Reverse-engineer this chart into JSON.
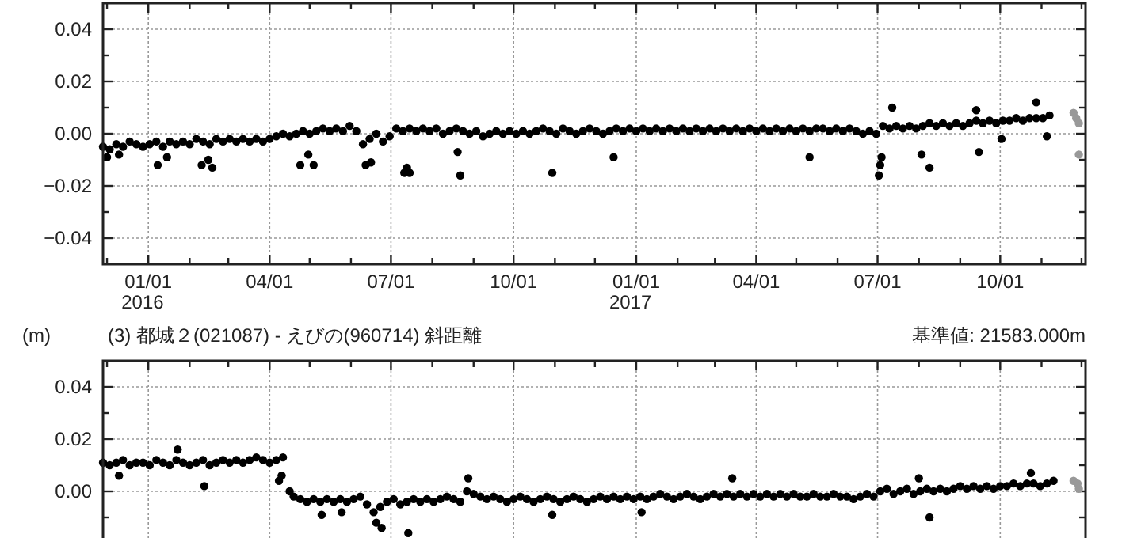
{
  "chart_data": [
    {
      "type": "scatter",
      "xlim": [
        "2015-11-28",
        "2017-12-04"
      ],
      "ylim": [
        -0.05,
        0.05
      ],
      "grid": true,
      "marker": "circle",
      "xticks": [
        {
          "value": "2015-12-01",
          "label": null
        },
        {
          "value": "2016-01-01",
          "label": "01/01\n2016"
        },
        {
          "value": "2016-02-01",
          "label": null
        },
        {
          "value": "2016-03-01",
          "label": null
        },
        {
          "value": "2016-04-01",
          "label": "04/01"
        },
        {
          "value": "2016-05-01",
          "label": null
        },
        {
          "value": "2016-06-01",
          "label": null
        },
        {
          "value": "2016-07-01",
          "label": "07/01"
        },
        {
          "value": "2016-08-01",
          "label": null
        },
        {
          "value": "2016-09-01",
          "label": null
        },
        {
          "value": "2016-10-01",
          "label": "10/01"
        },
        {
          "value": "2016-11-01",
          "label": null
        },
        {
          "value": "2016-12-01",
          "label": null
        },
        {
          "value": "2017-01-01",
          "label": "01/01\n2017"
        },
        {
          "value": "2017-02-01",
          "label": null
        },
        {
          "value": "2017-03-01",
          "label": null
        },
        {
          "value": "2017-04-01",
          "label": "04/01"
        },
        {
          "value": "2017-05-01",
          "label": null
        },
        {
          "value": "2017-06-01",
          "label": null
        },
        {
          "value": "2017-07-01",
          "label": "07/01"
        },
        {
          "value": "2017-08-01",
          "label": null
        },
        {
          "value": "2017-09-01",
          "label": null
        },
        {
          "value": "2017-10-01",
          "label": "10/01"
        },
        {
          "value": "2017-11-01",
          "label": null
        },
        {
          "value": "2017-12-01",
          "label": null
        }
      ],
      "yticks": [
        {
          "value": 0.04,
          "label": "0.04"
        },
        {
          "value": 0.03,
          "label": null
        },
        {
          "value": 0.02,
          "label": "0.02"
        },
        {
          "value": 0.01,
          "label": null
        },
        {
          "value": 0,
          "label": "0.00"
        },
        {
          "value": -0.01,
          "label": null
        },
        {
          "value": -0.02,
          "label": "−0.02"
        },
        {
          "value": -0.03,
          "label": null
        },
        {
          "value": -0.04,
          "label": "−0.04"
        }
      ],
      "series": [
        {
          "color": "#000000",
          "x": [
            "2015-11-28",
            "2015-12-03",
            "2015-12-08",
            "2015-12-13",
            "2015-12-18",
            "2015-12-23",
            "2015-12-28",
            "2016-01-02",
            "2016-01-07",
            "2016-01-12",
            "2016-01-17",
            "2016-01-22",
            "2016-01-27",
            "2016-02-01",
            "2016-02-06",
            "2016-02-11",
            "2016-02-16",
            "2016-02-21",
            "2016-02-26",
            "2016-03-02",
            "2016-03-07",
            "2016-03-12",
            "2016-03-17",
            "2016-03-22",
            "2016-03-27",
            "2016-04-01",
            "2016-04-06",
            "2016-04-11",
            "2016-04-16",
            "2016-04-21",
            "2016-04-26",
            "2016-05-01",
            "2016-05-06",
            "2016-05-11",
            "2016-05-16",
            "2016-05-21",
            "2016-05-26",
            "2016-05-31",
            "2016-06-05",
            "2016-06-10",
            "2016-06-15",
            "2016-06-20",
            "2016-06-25",
            "2016-06-30",
            "2016-07-05",
            "2016-07-10",
            "2016-07-15",
            "2016-07-20",
            "2016-07-25",
            "2016-07-30",
            "2016-08-04",
            "2016-08-09",
            "2016-08-14",
            "2016-08-19",
            "2016-08-24",
            "2016-08-29",
            "2016-09-03",
            "2016-09-08",
            "2016-09-13",
            "2016-09-18",
            "2016-09-23",
            "2016-09-28",
            "2016-10-03",
            "2016-10-08",
            "2016-10-13",
            "2016-10-18",
            "2016-10-23",
            "2016-10-28",
            "2016-11-02",
            "2016-11-07",
            "2016-11-12",
            "2016-11-17",
            "2016-11-22",
            "2016-11-27",
            "2016-12-02",
            "2016-12-07",
            "2016-12-12",
            "2016-12-17",
            "2016-12-22",
            "2016-12-27",
            "2017-01-01",
            "2017-01-06",
            "2017-01-11",
            "2017-01-16",
            "2017-01-21",
            "2017-01-26",
            "2017-01-31",
            "2017-02-05",
            "2017-02-10",
            "2017-02-15",
            "2017-02-20",
            "2017-02-25",
            "2017-03-02",
            "2017-03-07",
            "2017-03-12",
            "2017-03-17",
            "2017-03-22",
            "2017-03-27",
            "2017-04-01",
            "2017-04-06",
            "2017-04-11",
            "2017-04-16",
            "2017-04-21",
            "2017-04-26",
            "2017-05-01",
            "2017-05-06",
            "2017-05-11",
            "2017-05-16",
            "2017-05-21",
            "2017-05-26",
            "2017-05-31",
            "2017-06-05",
            "2017-06-10",
            "2017-06-15",
            "2017-06-20",
            "2017-06-25",
            "2017-06-30",
            "2017-07-05",
            "2017-07-10",
            "2017-07-15",
            "2017-07-20",
            "2017-07-25",
            "2017-07-30",
            "2017-08-04",
            "2017-08-09",
            "2017-08-14",
            "2017-08-19",
            "2017-08-24",
            "2017-08-29",
            "2017-09-03",
            "2017-09-08",
            "2017-09-13",
            "2017-09-18",
            "2017-09-23",
            "2017-09-28",
            "2017-10-03",
            "2017-10-08",
            "2017-10-13",
            "2017-10-18",
            "2017-10-23",
            "2017-10-28",
            "2017-11-02",
            "2017-11-07",
            "2015-12-01",
            "2015-12-10",
            "2016-01-08",
            "2016-01-15",
            "2016-02-10",
            "2016-02-15",
            "2016-02-18",
            "2016-04-24",
            "2016-04-30",
            "2016-05-04",
            "2016-06-12",
            "2016-06-16",
            "2016-07-11",
            "2016-07-13",
            "2016-07-15",
            "2016-08-20",
            "2016-08-22",
            "2016-10-30",
            "2016-12-15",
            "2017-05-11",
            "2017-07-02",
            "2017-07-03",
            "2017-07-04",
            "2017-07-12",
            "2017-08-03",
            "2017-08-09",
            "2017-09-13",
            "2017-09-15",
            "2017-10-02",
            "2017-10-28",
            "2017-11-05"
          ],
          "values": [
            -0.005,
            -0.006,
            -0.004,
            -0.005,
            -0.003,
            -0.004,
            -0.005,
            -0.004,
            -0.003,
            -0.005,
            -0.003,
            -0.004,
            -0.003,
            -0.004,
            -0.002,
            -0.003,
            -0.004,
            -0.002,
            -0.003,
            -0.002,
            -0.003,
            -0.002,
            -0.003,
            -0.002,
            -0.003,
            -0.002,
            -0.001,
            0.0,
            -0.001,
            0.0,
            0.001,
            0.0,
            0.001,
            0.002,
            0.001,
            0.002,
            0.001,
            0.003,
            0.001,
            -0.004,
            -0.002,
            0.0,
            -0.003,
            -0.001,
            0.002,
            0.001,
            0.002,
            0.001,
            0.002,
            0.001,
            0.002,
            0.0,
            0.001,
            0.002,
            0.001,
            0.0,
            0.001,
            -0.001,
            0.0,
            0.001,
            0.0,
            0.001,
            0.0,
            0.001,
            0.0,
            0.001,
            0.002,
            0.001,
            0.0,
            0.002,
            0.001,
            0.0,
            0.001,
            0.002,
            0.001,
            0.0,
            0.001,
            0.002,
            0.001,
            0.002,
            0.001,
            0.002,
            0.001,
            0.002,
            0.001,
            0.002,
            0.001,
            0.002,
            0.001,
            0.002,
            0.001,
            0.002,
            0.001,
            0.002,
            0.001,
            0.002,
            0.001,
            0.002,
            0.001,
            0.002,
            0.001,
            0.002,
            0.001,
            0.002,
            0.001,
            0.002,
            0.001,
            0.002,
            0.002,
            0.001,
            0.002,
            0.001,
            0.002,
            0.001,
            0.0,
            0.001,
            0.0,
            0.003,
            0.002,
            0.003,
            0.002,
            0.003,
            0.002,
            0.003,
            0.004,
            0.003,
            0.004,
            0.003,
            0.004,
            0.003,
            0.004,
            0.005,
            0.004,
            0.005,
            0.004,
            0.005,
            0.005,
            0.006,
            0.005,
            0.006,
            0.006,
            0.006,
            0.007,
            -0.009,
            -0.008,
            -0.012,
            -0.009,
            -0.012,
            -0.01,
            -0.013,
            -0.012,
            -0.008,
            -0.012,
            -0.012,
            -0.011,
            -0.015,
            -0.013,
            -0.015,
            -0.007,
            -0.016,
            -0.015,
            -0.009,
            -0.009,
            -0.016,
            -0.012,
            -0.009,
            0.01,
            -0.008,
            -0.013,
            0.009,
            -0.007,
            -0.002,
            0.012,
            -0.001
          ]
        },
        {
          "color": "#999999",
          "x": [
            "2017-11-25",
            "2017-11-27",
            "2017-11-29",
            "2017-11-29"
          ],
          "values": [
            0.008,
            0.006,
            0.004,
            -0.008
          ]
        }
      ]
    },
    {
      "type": "scatter",
      "title": "(3) 都城２(021087) - えびの(960714) 斜距離",
      "ylabel": "(m)",
      "annotations": [
        "基準値: 21583.000m"
      ],
      "xlim": [
        "2015-11-28",
        "2017-12-04"
      ],
      "ylim": [
        -0.05,
        0.05
      ],
      "grid": true,
      "marker": "circle",
      "tick_labels": "y",
      "xticks": [
        {
          "value": "2015-12-01",
          "label": null
        },
        {
          "value": "2016-01-01",
          "label": null
        },
        {
          "value": "2016-02-01",
          "label": null
        },
        {
          "value": "2016-03-01",
          "label": null
        },
        {
          "value": "2016-04-01",
          "label": null
        },
        {
          "value": "2016-05-01",
          "label": null
        },
        {
          "value": "2016-06-01",
          "label": null
        },
        {
          "value": "2016-07-01",
          "label": null
        },
        {
          "value": "2016-08-01",
          "label": null
        },
        {
          "value": "2016-09-01",
          "label": null
        },
        {
          "value": "2016-10-01",
          "label": null
        },
        {
          "value": "2016-11-01",
          "label": null
        },
        {
          "value": "2016-12-01",
          "label": null
        },
        {
          "value": "2017-01-01",
          "label": null
        },
        {
          "value": "2017-02-01",
          "label": null
        },
        {
          "value": "2017-03-01",
          "label": null
        },
        {
          "value": "2017-04-01",
          "label": null
        },
        {
          "value": "2017-05-01",
          "label": null
        },
        {
          "value": "2017-06-01",
          "label": null
        },
        {
          "value": "2017-07-01",
          "label": null
        },
        {
          "value": "2017-08-01",
          "label": null
        },
        {
          "value": "2017-09-01",
          "label": null
        },
        {
          "value": "2017-10-01",
          "label": null
        },
        {
          "value": "2017-11-01",
          "label": null
        },
        {
          "value": "2017-12-01",
          "label": null
        }
      ],
      "yticks": [
        {
          "value": 0.04,
          "label": "0.04"
        },
        {
          "value": 0.03,
          "label": null
        },
        {
          "value": 0.02,
          "label": "0.02"
        },
        {
          "value": 0.01,
          "label": null
        },
        {
          "value": 0,
          "label": "0.00"
        },
        {
          "value": -0.01,
          "label": null
        }
      ],
      "series": [
        {
          "color": "#000000",
          "x": [
            "2015-11-28",
            "2015-12-03",
            "2015-12-08",
            "2015-12-13",
            "2015-12-18",
            "2015-12-23",
            "2015-12-28",
            "2016-01-02",
            "2016-01-07",
            "2016-01-12",
            "2016-01-17",
            "2016-01-22",
            "2016-01-27",
            "2016-02-01",
            "2016-02-06",
            "2016-02-11",
            "2016-02-16",
            "2016-02-21",
            "2016-02-26",
            "2016-03-02",
            "2016-03-07",
            "2016-03-12",
            "2016-03-17",
            "2016-03-22",
            "2016-03-27",
            "2016-04-01",
            "2016-04-06",
            "2016-04-11",
            "2016-04-16",
            "2016-04-19",
            "2016-04-24",
            "2016-04-29",
            "2016-05-04",
            "2016-05-09",
            "2016-05-14",
            "2016-05-19",
            "2016-05-24",
            "2016-05-29",
            "2016-06-03",
            "2016-06-08",
            "2016-06-13",
            "2016-06-18",
            "2016-06-23",
            "2016-06-28",
            "2016-07-03",
            "2016-07-08",
            "2016-07-13",
            "2016-07-18",
            "2016-07-23",
            "2016-07-28",
            "2016-08-02",
            "2016-08-07",
            "2016-08-12",
            "2016-08-17",
            "2016-08-22",
            "2016-08-27",
            "2016-09-01",
            "2016-09-06",
            "2016-09-11",
            "2016-09-16",
            "2016-09-21",
            "2016-09-26",
            "2016-10-01",
            "2016-10-06",
            "2016-10-11",
            "2016-10-16",
            "2016-10-21",
            "2016-10-26",
            "2016-10-31",
            "2016-11-05",
            "2016-11-10",
            "2016-11-15",
            "2016-11-20",
            "2016-11-25",
            "2016-11-30",
            "2016-12-05",
            "2016-12-10",
            "2016-12-15",
            "2016-12-20",
            "2016-12-25",
            "2016-12-30",
            "2017-01-04",
            "2017-01-09",
            "2017-01-14",
            "2017-01-19",
            "2017-01-24",
            "2017-01-29",
            "2017-02-03",
            "2017-02-08",
            "2017-02-13",
            "2017-02-18",
            "2017-02-23",
            "2017-02-28",
            "2017-03-05",
            "2017-03-10",
            "2017-03-15",
            "2017-03-20",
            "2017-03-25",
            "2017-03-30",
            "2017-04-04",
            "2017-04-09",
            "2017-04-14",
            "2017-04-19",
            "2017-04-24",
            "2017-04-29",
            "2017-05-04",
            "2017-05-09",
            "2017-05-14",
            "2017-05-19",
            "2017-05-24",
            "2017-05-29",
            "2017-06-03",
            "2017-06-08",
            "2017-06-13",
            "2017-06-18",
            "2017-06-23",
            "2017-06-28",
            "2017-07-03",
            "2017-07-08",
            "2017-07-13",
            "2017-07-18",
            "2017-07-23",
            "2017-07-28",
            "2017-08-02",
            "2017-08-07",
            "2017-08-12",
            "2017-08-17",
            "2017-08-22",
            "2017-08-27",
            "2017-09-01",
            "2017-09-06",
            "2017-09-11",
            "2017-09-16",
            "2017-09-21",
            "2017-09-26",
            "2017-10-01",
            "2017-10-06",
            "2017-10-11",
            "2017-10-16",
            "2017-10-21",
            "2017-10-26",
            "2017-10-31",
            "2017-11-05",
            "2017-11-10",
            "2015-12-10",
            "2016-01-23",
            "2016-02-12",
            "2016-04-08",
            "2016-04-10",
            "2016-05-10",
            "2016-05-25",
            "2016-06-20",
            "2016-06-24",
            "2016-07-14",
            "2016-08-28",
            "2016-10-30",
            "2017-01-05",
            "2017-03-14",
            "2017-08-01",
            "2017-08-09",
            "2017-10-24"
          ],
          "values": [
            0.011,
            0.01,
            0.011,
            0.012,
            0.01,
            0.011,
            0.011,
            0.01,
            0.012,
            0.011,
            0.01,
            0.012,
            0.011,
            0.01,
            0.011,
            0.012,
            0.01,
            0.011,
            0.012,
            0.011,
            0.012,
            0.011,
            0.012,
            0.013,
            0.012,
            0.011,
            0.012,
            0.013,
            0.0,
            -0.002,
            -0.003,
            -0.004,
            -0.003,
            -0.004,
            -0.003,
            -0.004,
            -0.003,
            -0.004,
            -0.003,
            -0.002,
            -0.005,
            -0.008,
            -0.006,
            -0.004,
            -0.003,
            -0.005,
            -0.004,
            -0.003,
            -0.004,
            -0.003,
            -0.004,
            -0.003,
            -0.002,
            -0.003,
            -0.004,
            0.0,
            -0.001,
            -0.002,
            -0.003,
            -0.002,
            -0.003,
            -0.004,
            -0.003,
            -0.002,
            -0.003,
            -0.004,
            -0.003,
            -0.002,
            -0.003,
            -0.004,
            -0.003,
            -0.002,
            -0.003,
            -0.004,
            -0.003,
            -0.002,
            -0.003,
            -0.002,
            -0.003,
            -0.002,
            -0.003,
            -0.002,
            -0.003,
            -0.002,
            -0.001,
            -0.002,
            -0.003,
            -0.002,
            -0.001,
            -0.002,
            -0.003,
            -0.002,
            -0.001,
            -0.002,
            -0.001,
            -0.002,
            -0.001,
            -0.002,
            -0.001,
            -0.002,
            -0.001,
            -0.002,
            -0.001,
            -0.002,
            -0.001,
            -0.002,
            -0.002,
            -0.001,
            -0.002,
            -0.002,
            -0.001,
            -0.002,
            -0.002,
            -0.003,
            -0.002,
            -0.001,
            -0.002,
            0.0,
            0.001,
            -0.001,
            0.0,
            0.001,
            -0.001,
            0.0,
            0.001,
            0.0,
            0.001,
            0.0,
            0.001,
            0.002,
            0.001,
            0.002,
            0.001,
            0.002,
            0.001,
            0.002,
            0.002,
            0.003,
            0.002,
            0.003,
            0.003,
            0.002,
            0.003,
            0.004,
            0.006,
            0.016,
            0.002,
            0.004,
            0.006,
            -0.009,
            -0.008,
            -0.012,
            -0.014,
            -0.016,
            0.005,
            -0.009,
            -0.008,
            0.005,
            0.005,
            -0.01,
            0.007
          ]
        },
        {
          "color": "#999999",
          "x": [
            "2017-11-25",
            "2017-11-28",
            "2017-11-29"
          ],
          "values": [
            0.004,
            0.003,
            0.001
          ]
        }
      ]
    }
  ]
}
